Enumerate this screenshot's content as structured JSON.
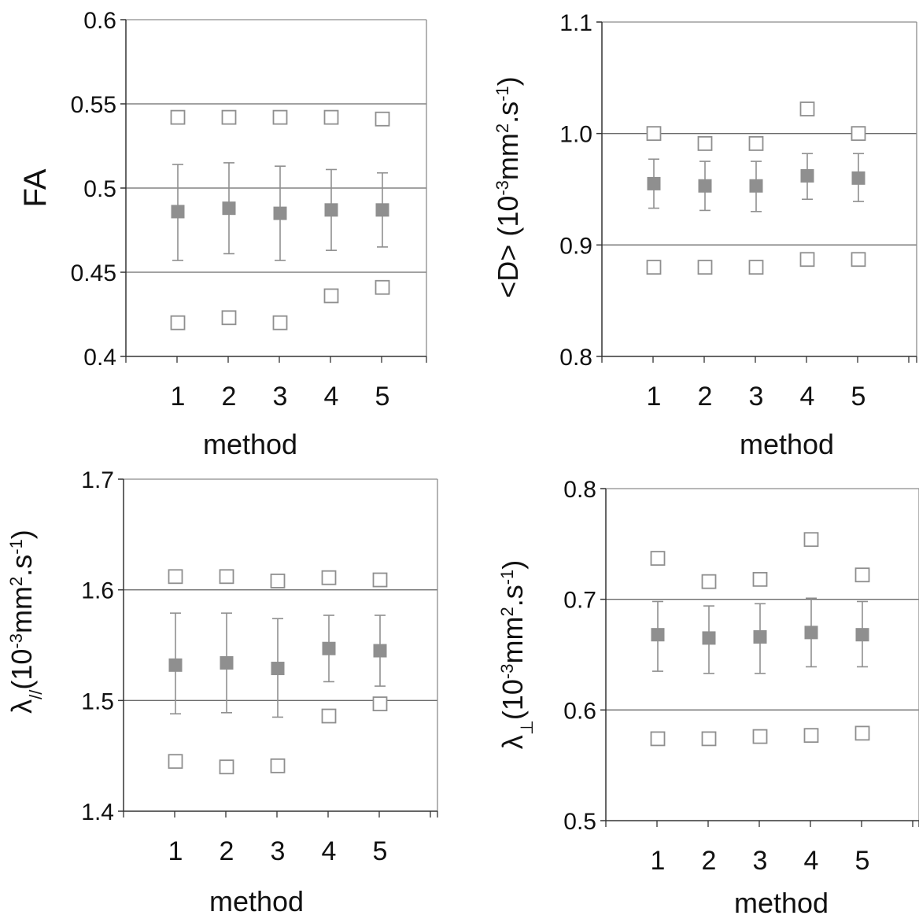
{
  "colors": {
    "frame": "#8c8c8c",
    "grid": "#6a6a6a",
    "mean_marker": "#8f8f8f",
    "bound_marker": "#8f8f8f",
    "errorbar": "#8f8f8f",
    "text": "#111111"
  },
  "chart_data": [
    {
      "type": "scatter",
      "panel": "top-left",
      "xlabel": "method",
      "ylabel": "FA",
      "ylim": [
        0.4,
        0.6
      ],
      "ytick_labels": [
        "0.4",
        "0.45",
        "0.5",
        "0.55",
        "0.6"
      ],
      "yticks": [
        0.4,
        0.45,
        0.5,
        0.55,
        0.6
      ],
      "gridlines": [
        0.45,
        0.5,
        0.55
      ],
      "categories": [
        "1",
        "2",
        "3",
        "4",
        "5"
      ],
      "series": [
        {
          "marker": "filled-square",
          "values": [
            0.486,
            0.488,
            0.485,
            0.487,
            0.487
          ],
          "err_low": [
            0.457,
            0.461,
            0.457,
            0.463,
            0.465
          ],
          "err_high": [
            0.514,
            0.515,
            0.513,
            0.511,
            0.509
          ]
        },
        {
          "marker": "open-square",
          "values": [
            0.542,
            0.542,
            0.542,
            0.542,
            0.541
          ]
        },
        {
          "marker": "open-square",
          "values": [
            0.42,
            0.423,
            0.42,
            0.436,
            0.441
          ]
        }
      ]
    },
    {
      "type": "scatter",
      "panel": "top-right",
      "xlabel": "method",
      "ylabel_parts": [
        "<D> (10",
        "-3",
        "mm",
        "2",
        ".s",
        "-1",
        ")"
      ],
      "ylim": [
        0.8,
        1.1
      ],
      "ytick_labels": [
        "0.8",
        "0.9",
        "1.0",
        "1.1"
      ],
      "yticks": [
        0.8,
        0.9,
        1.0,
        1.1
      ],
      "gridlines": [
        0.9,
        1.0
      ],
      "categories": [
        "1",
        "2",
        "3",
        "4",
        "5"
      ],
      "series": [
        {
          "marker": "filled-square",
          "values": [
            0.955,
            0.953,
            0.953,
            0.962,
            0.96
          ],
          "err_low": [
            0.933,
            0.931,
            0.93,
            0.941,
            0.939
          ],
          "err_high": [
            0.977,
            0.975,
            0.975,
            0.982,
            0.982
          ]
        },
        {
          "marker": "open-square",
          "values": [
            1.0,
            0.991,
            0.991,
            1.022,
            1.0
          ]
        },
        {
          "marker": "open-square",
          "values": [
            0.88,
            0.88,
            0.88,
            0.887,
            0.887
          ]
        }
      ]
    },
    {
      "type": "scatter",
      "panel": "bottom-left",
      "xlabel": "method",
      "ylabel_parts": [
        "λ",
        "//",
        "(10",
        "-3",
        "mm",
        "2",
        ".s",
        "-1",
        ")"
      ],
      "ylim": [
        1.4,
        1.7
      ],
      "ytick_labels": [
        "1.4",
        "1.5",
        "1.6",
        "1.7"
      ],
      "yticks": [
        1.4,
        1.5,
        1.6,
        1.7
      ],
      "gridlines": [
        1.5,
        1.6
      ],
      "categories": [
        "1",
        "2",
        "3",
        "4",
        "5"
      ],
      "series": [
        {
          "marker": "filled-square",
          "values": [
            1.532,
            1.534,
            1.529,
            1.547,
            1.545
          ],
          "err_low": [
            1.488,
            1.489,
            1.485,
            1.517,
            1.513
          ],
          "err_high": [
            1.579,
            1.579,
            1.574,
            1.577,
            1.577
          ]
        },
        {
          "marker": "open-square",
          "values": [
            1.612,
            1.612,
            1.608,
            1.611,
            1.609
          ]
        },
        {
          "marker": "open-square",
          "values": [
            1.445,
            1.44,
            1.441,
            1.486,
            1.497
          ]
        }
      ]
    },
    {
      "type": "scatter",
      "panel": "bottom-right",
      "xlabel": "method",
      "ylabel_parts": [
        "λ",
        "⊥",
        "(10",
        "-3",
        "mm",
        "2",
        ".s",
        "-1",
        ")"
      ],
      "ylim": [
        0.5,
        0.8
      ],
      "ytick_labels": [
        "0.5",
        "0.6",
        "0.7",
        "0.8"
      ],
      "yticks": [
        0.5,
        0.6,
        0.7,
        0.8
      ],
      "gridlines": [
        0.6,
        0.7
      ],
      "categories": [
        "1",
        "2",
        "3",
        "4",
        "5"
      ],
      "series": [
        {
          "marker": "filled-square",
          "values": [
            0.668,
            0.665,
            0.666,
            0.67,
            0.668
          ],
          "err_low": [
            0.635,
            0.633,
            0.633,
            0.639,
            0.639
          ],
          "err_high": [
            0.698,
            0.694,
            0.696,
            0.701,
            0.698
          ]
        },
        {
          "marker": "open-square",
          "values": [
            0.737,
            0.716,
            0.718,
            0.754,
            0.722
          ]
        },
        {
          "marker": "open-square",
          "values": [
            0.574,
            0.574,
            0.576,
            0.577,
            0.579
          ]
        }
      ]
    }
  ]
}
